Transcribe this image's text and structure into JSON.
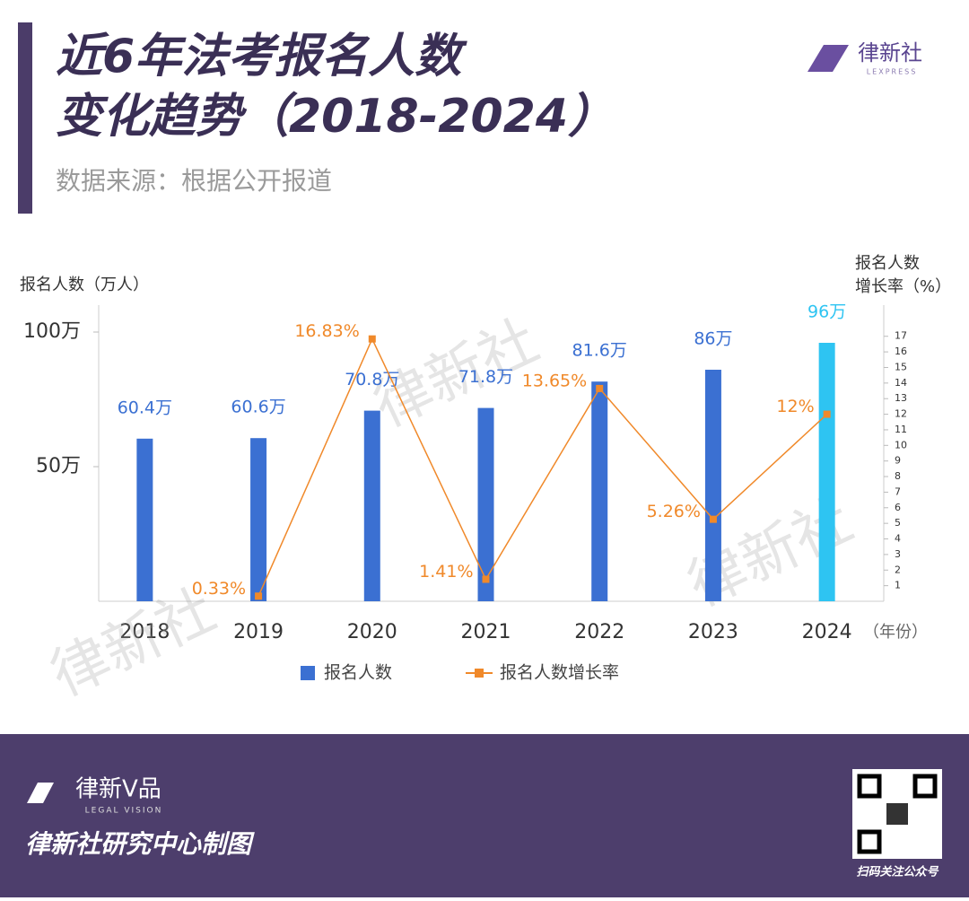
{
  "header": {
    "title_lines": [
      "近6年法考报名人数",
      "变化趋势（2018-2024）"
    ],
    "subtitle": "数据来源：根据公开报道",
    "logo": "律新社",
    "logo_sub": "LEXPRESS"
  },
  "chart_data": {
    "type": "bar_line",
    "ylabel": "报名人数（万人）",
    "y2label": [
      "报名人数",
      "增长率（%）"
    ],
    "xlabel": "（年份）",
    "categories": [
      "2018",
      "2019",
      "2020",
      "2021",
      "2022",
      "2023",
      "2024"
    ],
    "series": [
      {
        "name": "报名人数",
        "type": "bar",
        "color": "#3b70d2",
        "colors": [
          "#3b70d2",
          "#3b70d2",
          "#3b70d2",
          "#3b70d2",
          "#3b70d2",
          "#3b70d2",
          "#2ec4f2"
        ],
        "values": [
          60.4,
          60.6,
          70.8,
          71.8,
          81.6,
          86,
          96
        ],
        "value_labels": [
          "60.4万",
          "60.6万",
          "70.8万",
          "71.8万",
          "81.6万",
          "86万",
          "96万"
        ]
      },
      {
        "name": "报名人数增长率",
        "type": "line",
        "axis": "y2",
        "color": "#f0892a",
        "values": [
          null,
          0.33,
          16.83,
          1.41,
          13.65,
          5.26,
          12
        ],
        "value_labels": [
          null,
          "0.33%",
          "16.83%",
          "1.41%",
          "13.65%",
          "5.26%",
          "12%"
        ]
      }
    ],
    "ylim": [
      0,
      110
    ],
    "yticks": [
      {
        "value": 50,
        "label": "50万"
      },
      {
        "value": 100,
        "label": "100万"
      }
    ],
    "y2lim": [
      0,
      19
    ],
    "y2ticks": [
      1,
      2,
      3,
      4,
      5,
      6,
      7,
      8,
      9,
      10,
      11,
      12,
      13,
      14,
      15,
      16,
      17
    ],
    "grid": false,
    "legend": "bottom",
    "watermarks": [
      "律新社",
      "律新社",
      "律新社"
    ]
  },
  "footer": {
    "brand": "律新V品",
    "brand_sub": "LEGAL VISION",
    "credit": "律新社研究中心制图",
    "qr_caption": "扫码关注公众号"
  }
}
